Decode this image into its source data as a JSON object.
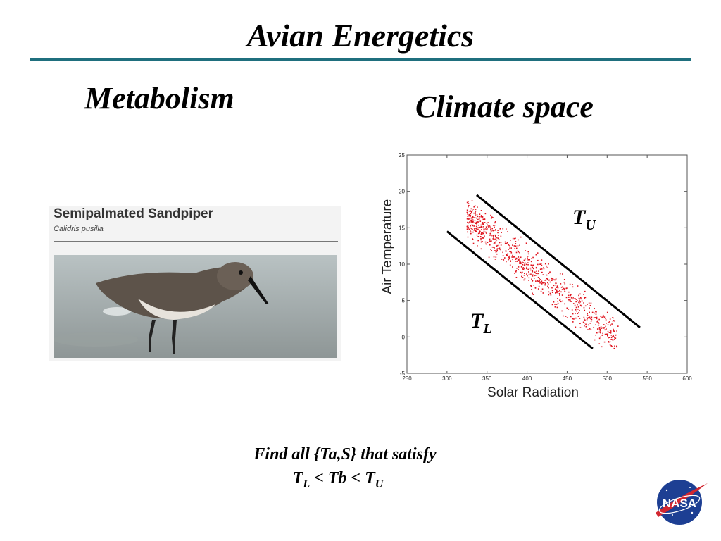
{
  "slide": {
    "title": "Avian Energetics",
    "left_heading": "Metabolism",
    "right_heading": "Climate space",
    "accent_color": "#1f6f7e"
  },
  "bird_card": {
    "name": "Semipalmated Sandpiper",
    "scientific_name": "Calidris pusilla"
  },
  "caption": {
    "line1": "Find all {Ta,S} that satisfy",
    "line2_T": "T",
    "line2_L": "L",
    "line2_mid": " < Tb < ",
    "line2_T2": "T",
    "line2_U": "U"
  },
  "logo": {
    "text": "NASA"
  },
  "chart_data": {
    "type": "scatter",
    "title": "",
    "xlabel": "Solar Radiation",
    "ylabel": "Air Temperature",
    "xlim": [
      250,
      600
    ],
    "ylim": [
      -5,
      25
    ],
    "xticks": [
      250,
      300,
      350,
      400,
      450,
      500,
      550,
      600
    ],
    "yticks": [
      -5,
      0,
      5,
      10,
      15,
      20,
      25
    ],
    "grid": false,
    "point_color": "#e0141e",
    "point_count": 800,
    "boundaries": [
      {
        "label_main": "T",
        "label_sub": "U",
        "points": [
          [
            337,
            19.5
          ],
          [
            541,
            1.3
          ]
        ]
      },
      {
        "label_main": "T",
        "label_sub": "L",
        "points": [
          [
            300,
            14.5
          ],
          [
            482,
            -1.6
          ]
        ]
      }
    ],
    "scatter_region": {
      "x_range": [
        325,
        515
      ],
      "description_band": "between T_L and T_U"
    }
  }
}
